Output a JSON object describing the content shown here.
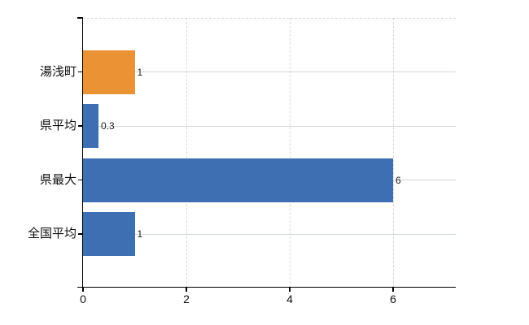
{
  "chart_data": {
    "type": "bar",
    "orientation": "horizontal",
    "categories": [
      "湯浅町",
      "県平均",
      "県最大",
      "全国平均"
    ],
    "values": [
      1,
      0.3,
      6,
      1
    ],
    "value_labels": [
      "1",
      "0.3",
      "6",
      "1"
    ],
    "bar_colors": [
      "#EB9234",
      "#3D6FB2",
      "#3D6FB2",
      "#3D6FB2"
    ],
    "x_tick_values": [
      0,
      2,
      4,
      6
    ],
    "x_tick_labels": [
      "0",
      "2",
      "4",
      "6"
    ],
    "xlim": [
      0,
      7.2
    ],
    "grid": {
      "horizontal": "solid",
      "vertical": "dashed",
      "top_border": "dashed"
    },
    "colors": {
      "orange_bar": "#EB9234",
      "blue_bar": "#3D6FB2",
      "grid_horizontal": "#d0dad0",
      "grid_vertical": "#d9d9d9",
      "axis": "#000000",
      "text": "#111111"
    }
  }
}
